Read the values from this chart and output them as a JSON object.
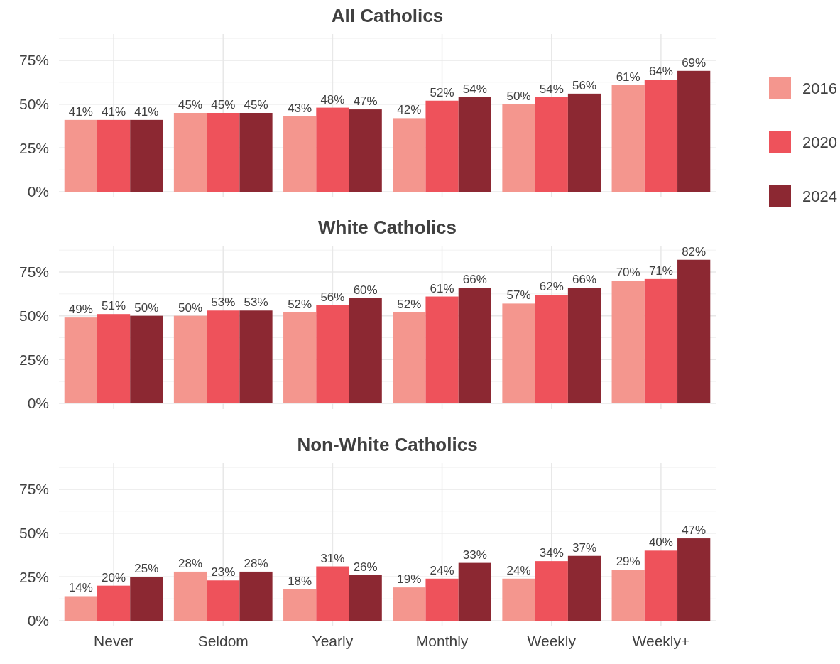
{
  "chart_data": [
    {
      "type": "bar",
      "title": "All Catholics",
      "categories": [
        null,
        null,
        null,
        null,
        null,
        null
      ],
      "series": [
        {
          "name": "2016",
          "color": "#f4968e",
          "values": [
            41,
            45,
            43,
            42,
            50,
            61
          ],
          "value_labels": [
            "41%",
            "45%",
            "43%",
            "42%",
            "50%",
            "61%"
          ]
        },
        {
          "name": "2020",
          "color": "#ee525b",
          "values": [
            41,
            45,
            48,
            52,
            54,
            64
          ],
          "value_labels": [
            "41%",
            "45%",
            "48%",
            "52%",
            "54%",
            "64%"
          ]
        },
        {
          "name": "2024",
          "color": "#8c2832",
          "values": [
            41,
            45,
            47,
            54,
            56,
            69
          ],
          "value_labels": [
            "41%",
            "45%",
            "47%",
            "54%",
            "56%",
            "69%"
          ]
        }
      ],
      "ylim": [
        0,
        90
      ],
      "yticks": [
        {
          "value": 0,
          "label": "0%"
        },
        {
          "value": 25,
          "label": "25%"
        },
        {
          "value": 50,
          "label": "50%"
        },
        {
          "value": 75,
          "label": "75%"
        }
      ],
      "grid": true,
      "legend": "right",
      "tick_labels": "y"
    },
    {
      "type": "bar",
      "title": "White Catholics",
      "categories": [
        null,
        null,
        null,
        null,
        null,
        null
      ],
      "series": [
        {
          "color": "#f4968e",
          "values": [
            49,
            50,
            52,
            52,
            57,
            70
          ],
          "value_labels": [
            "49%",
            "50%",
            "52%",
            "52%",
            "57%",
            "70%"
          ]
        },
        {
          "color": "#ee525b",
          "values": [
            51,
            53,
            56,
            61,
            62,
            71
          ],
          "value_labels": [
            "51%",
            "53%",
            "56%",
            "61%",
            "62%",
            "71%"
          ]
        },
        {
          "color": "#8c2832",
          "values": [
            50,
            53,
            60,
            66,
            66,
            82
          ],
          "value_labels": [
            "50%",
            "53%",
            "60%",
            "66%",
            "66%",
            "82%"
          ]
        }
      ],
      "ylim": [
        0,
        90
      ],
      "yticks": [
        {
          "value": 0,
          "label": "0%"
        },
        {
          "value": 25,
          "label": "25%"
        },
        {
          "value": 50,
          "label": "50%"
        },
        {
          "value": 75,
          "label": "75%"
        }
      ],
      "grid": true,
      "tick_labels": "y"
    },
    {
      "type": "bar",
      "title": "Non-White Catholics",
      "categories": [
        "Never",
        "Seldom",
        "Yearly",
        "Monthly",
        "Weekly",
        "Weekly+"
      ],
      "series": [
        {
          "color": "#f4968e",
          "values": [
            14,
            28,
            18,
            19,
            24,
            29
          ],
          "value_labels": [
            "14%",
            "28%",
            "18%",
            "19%",
            "24%",
            "29%"
          ]
        },
        {
          "color": "#ee525b",
          "values": [
            20,
            23,
            31,
            24,
            34,
            40
          ],
          "value_labels": [
            "20%",
            "23%",
            "31%",
            "24%",
            "34%",
            "40%"
          ]
        },
        {
          "color": "#8c2832",
          "values": [
            25,
            28,
            26,
            33,
            37,
            47
          ],
          "value_labels": [
            "25%",
            "28%",
            "26%",
            "33%",
            "37%",
            "47%"
          ]
        }
      ],
      "ylim": [
        0,
        90
      ],
      "yticks": [
        {
          "value": 0,
          "label": "0%"
        },
        {
          "value": 25,
          "label": "25%"
        },
        {
          "value": 50,
          "label": "50%"
        },
        {
          "value": 75,
          "label": "75%"
        }
      ],
      "grid": true
    }
  ]
}
